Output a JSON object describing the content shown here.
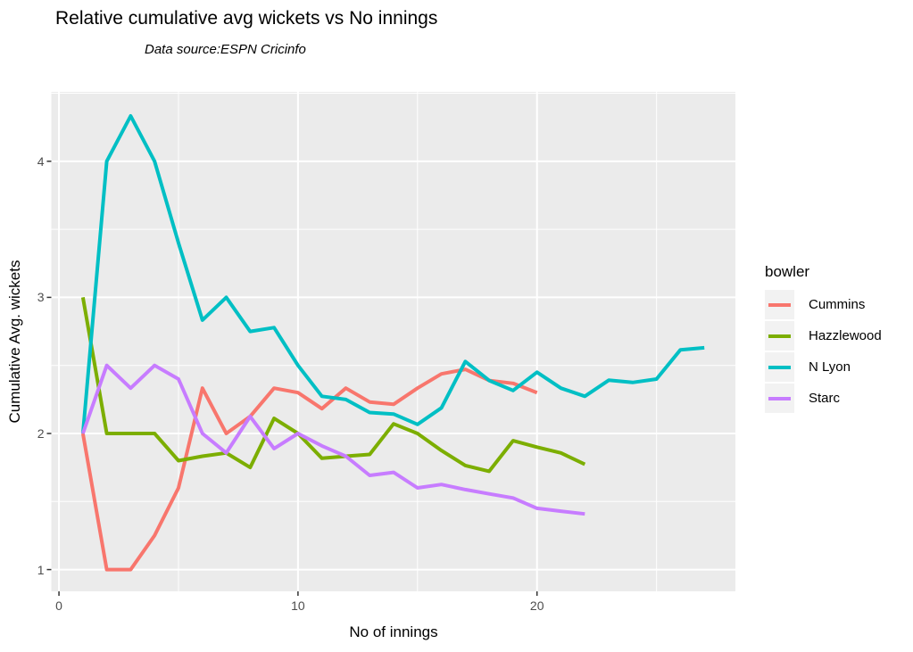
{
  "title": "Relative cumulative avg wickets vs No innings",
  "subtitle": "Data source:ESPN Cricinfo",
  "legend": {
    "title": "bowler"
  },
  "colors": {
    "panel_bg": "#EBEBEB",
    "grid": "#FFFFFF",
    "tick_mark": "#333333",
    "tick_text": "#4D4D4D",
    "legend_key_bg": "#F2F2F2"
  },
  "chart_data": {
    "type": "line",
    "title": "Relative cumulative avg wickets vs No innings",
    "subtitle": "Data source:ESPN Cricinfo",
    "xlabel": "No of innings",
    "ylabel": "Cumulative Avg. wickets",
    "legend_title": "bowler",
    "legend_position": "right",
    "grid": "major-and-minor-white-on-gray",
    "xlim": [
      -0.32,
      28.3
    ],
    "ylim": [
      0.84,
      4.51
    ],
    "x_ticks": [
      0,
      10,
      20
    ],
    "y_ticks": [
      1,
      2,
      3,
      4
    ],
    "x_minor": [
      5,
      15,
      25
    ],
    "y_minor": [
      1.5,
      2.5,
      3.5,
      4.5
    ],
    "series": [
      {
        "name": "Cummins",
        "color": "#F8766D",
        "x": [
          1,
          2,
          3,
          4,
          5,
          6,
          7,
          8,
          9,
          10,
          11,
          12,
          13,
          14,
          15,
          16,
          17,
          18,
          19,
          20
        ],
        "y": [
          2,
          1,
          1,
          1.25,
          1.6,
          2.333,
          2,
          2.125,
          2.333,
          2.3,
          2.182,
          2.333,
          2.231,
          2.214,
          2.333,
          2.438,
          2.471,
          2.389,
          2.368,
          2.3
        ]
      },
      {
        "name": "Hazzlewood",
        "color": "#7CAE00",
        "x": [
          1,
          2,
          3,
          4,
          5,
          6,
          7,
          8,
          9,
          10,
          11,
          12,
          13,
          14,
          15,
          16,
          17,
          18,
          19,
          20,
          21,
          22
        ],
        "y": [
          3,
          2,
          2,
          2,
          1.8,
          1.833,
          1.857,
          1.75,
          2.111,
          2,
          1.818,
          1.833,
          1.846,
          2.071,
          2,
          1.875,
          1.765,
          1.722,
          1.947,
          1.9,
          1.857,
          1.773
        ]
      },
      {
        "name": "N Lyon",
        "color": "#00BFC4",
        "x": [
          1,
          2,
          3,
          4,
          5,
          6,
          7,
          8,
          9,
          10,
          11,
          12,
          13,
          14,
          15,
          16,
          17,
          18,
          19,
          20,
          21,
          22,
          23,
          24,
          25,
          26,
          27
        ],
        "y": [
          2,
          4,
          4.333,
          4,
          3.4,
          2.833,
          3,
          2.75,
          2.778,
          2.5,
          2.273,
          2.25,
          2.154,
          2.143,
          2.067,
          2.188,
          2.529,
          2.389,
          2.316,
          2.45,
          2.333,
          2.273,
          2.391,
          2.375,
          2.4,
          2.615,
          2.63
        ]
      },
      {
        "name": "Starc",
        "color": "#C77CFF",
        "x": [
          1,
          2,
          3,
          4,
          5,
          6,
          7,
          8,
          9,
          10,
          11,
          12,
          13,
          14,
          15,
          16,
          17,
          18,
          19,
          20,
          21,
          22
        ],
        "y": [
          2,
          2.5,
          2.333,
          2.5,
          2.4,
          2,
          1.857,
          2.125,
          1.889,
          2,
          1.909,
          1.833,
          1.692,
          1.714,
          1.6,
          1.625,
          1.588,
          1.556,
          1.526,
          1.45,
          1.429,
          1.409
        ]
      }
    ]
  }
}
